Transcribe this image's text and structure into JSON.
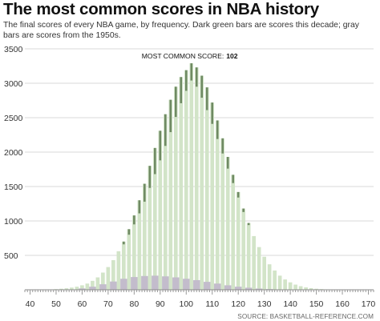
{
  "title": "The most common scores in NBA history",
  "subtitle": "The final scores of every NBA game, by frequency. Dark green bars are scores this decade; gray bars are scores from the 1950s.",
  "source": "SOURCE: BASKETBALL-REFERENCE.COM",
  "colors": {
    "all_games": "#d2e4c8",
    "this_decade": "#6f8a63",
    "fifties": "#c3bccc",
    "grid": "#d9d9d9"
  },
  "chart_data": {
    "type": "bar",
    "title": "The most common scores in NBA history",
    "xlabel": "",
    "ylabel": "",
    "xlim": [
      38,
      172
    ],
    "ylim": [
      0,
      3500
    ],
    "grid": true,
    "x_ticks": [
      40,
      50,
      60,
      70,
      80,
      90,
      100,
      110,
      120,
      130,
      140,
      150,
      160,
      170
    ],
    "y_ticks": [
      500,
      1000,
      1500,
      2000,
      2500,
      3000,
      3500
    ],
    "annotation": {
      "label": "MOST COMMON SCORE:",
      "value": "102",
      "x": 102
    },
    "series": [
      {
        "key": "all",
        "values": [
          {
            "x": 50,
            "y": 10
          },
          {
            "x": 52,
            "y": 15
          },
          {
            "x": 54,
            "y": 22
          },
          {
            "x": 56,
            "y": 32
          },
          {
            "x": 58,
            "y": 45
          },
          {
            "x": 60,
            "y": 65
          },
          {
            "x": 62,
            "y": 90
          },
          {
            "x": 64,
            "y": 130
          },
          {
            "x": 66,
            "y": 180
          },
          {
            "x": 68,
            "y": 250
          },
          {
            "x": 70,
            "y": 330
          },
          {
            "x": 72,
            "y": 430
          },
          {
            "x": 74,
            "y": 560
          },
          {
            "x": 76,
            "y": 700
          },
          {
            "x": 78,
            "y": 880
          },
          {
            "x": 80,
            "y": 1080
          },
          {
            "x": 82,
            "y": 1300
          },
          {
            "x": 84,
            "y": 1540
          },
          {
            "x": 86,
            "y": 1800
          },
          {
            "x": 88,
            "y": 2060
          },
          {
            "x": 90,
            "y": 2310
          },
          {
            "x": 92,
            "y": 2550
          },
          {
            "x": 94,
            "y": 2760
          },
          {
            "x": 96,
            "y": 2950
          },
          {
            "x": 98,
            "y": 3090
          },
          {
            "x": 100,
            "y": 3190
          },
          {
            "x": 102,
            "y": 3290
          },
          {
            "x": 104,
            "y": 3230
          },
          {
            "x": 106,
            "y": 3110
          },
          {
            "x": 108,
            "y": 2940
          },
          {
            "x": 110,
            "y": 2720
          },
          {
            "x": 112,
            "y": 2460
          },
          {
            "x": 114,
            "y": 2200
          },
          {
            "x": 116,
            "y": 1930
          },
          {
            "x": 118,
            "y": 1670
          },
          {
            "x": 120,
            "y": 1420
          },
          {
            "x": 122,
            "y": 1180
          },
          {
            "x": 124,
            "y": 970
          },
          {
            "x": 126,
            "y": 780
          },
          {
            "x": 128,
            "y": 620
          },
          {
            "x": 130,
            "y": 480
          },
          {
            "x": 132,
            "y": 370
          },
          {
            "x": 134,
            "y": 280
          },
          {
            "x": 136,
            "y": 205
          },
          {
            "x": 138,
            "y": 150
          },
          {
            "x": 140,
            "y": 108
          },
          {
            "x": 142,
            "y": 75
          },
          {
            "x": 144,
            "y": 52
          },
          {
            "x": 146,
            "y": 35
          },
          {
            "x": 148,
            "y": 24
          },
          {
            "x": 150,
            "y": 15
          },
          {
            "x": 152,
            "y": 10
          },
          {
            "x": 154,
            "y": 6
          }
        ]
      },
      {
        "key": "this_decade",
        "values": [
          {
            "x": 76,
            "y": 40
          },
          {
            "x": 78,
            "y": 80
          },
          {
            "x": 80,
            "y": 130
          },
          {
            "x": 82,
            "y": 190
          },
          {
            "x": 84,
            "y": 260
          },
          {
            "x": 86,
            "y": 320
          },
          {
            "x": 88,
            "y": 380
          },
          {
            "x": 90,
            "y": 430
          },
          {
            "x": 92,
            "y": 460
          },
          {
            "x": 94,
            "y": 470
          },
          {
            "x": 96,
            "y": 440
          },
          {
            "x": 98,
            "y": 380
          },
          {
            "x": 100,
            "y": 300
          },
          {
            "x": 102,
            "y": 250
          },
          {
            "x": 104,
            "y": 280
          },
          {
            "x": 106,
            "y": 320
          },
          {
            "x": 108,
            "y": 330
          },
          {
            "x": 110,
            "y": 310
          },
          {
            "x": 112,
            "y": 270
          },
          {
            "x": 114,
            "y": 220
          },
          {
            "x": 116,
            "y": 170
          },
          {
            "x": 118,
            "y": 120
          },
          {
            "x": 120,
            "y": 80
          },
          {
            "x": 122,
            "y": 50
          },
          {
            "x": 124,
            "y": 30
          }
        ]
      },
      {
        "key": "fifties",
        "values": [
          {
            "x": 60,
            "y": 20
          },
          {
            "x": 64,
            "y": 45
          },
          {
            "x": 68,
            "y": 80
          },
          {
            "x": 72,
            "y": 120
          },
          {
            "x": 76,
            "y": 160
          },
          {
            "x": 80,
            "y": 185
          },
          {
            "x": 84,
            "y": 200
          },
          {
            "x": 88,
            "y": 205
          },
          {
            "x": 92,
            "y": 195
          },
          {
            "x": 96,
            "y": 180
          },
          {
            "x": 100,
            "y": 160
          },
          {
            "x": 104,
            "y": 140
          },
          {
            "x": 108,
            "y": 115
          },
          {
            "x": 112,
            "y": 90
          },
          {
            "x": 116,
            "y": 65
          },
          {
            "x": 120,
            "y": 45
          },
          {
            "x": 124,
            "y": 30
          },
          {
            "x": 128,
            "y": 18
          },
          {
            "x": 132,
            "y": 10
          }
        ]
      }
    ]
  }
}
